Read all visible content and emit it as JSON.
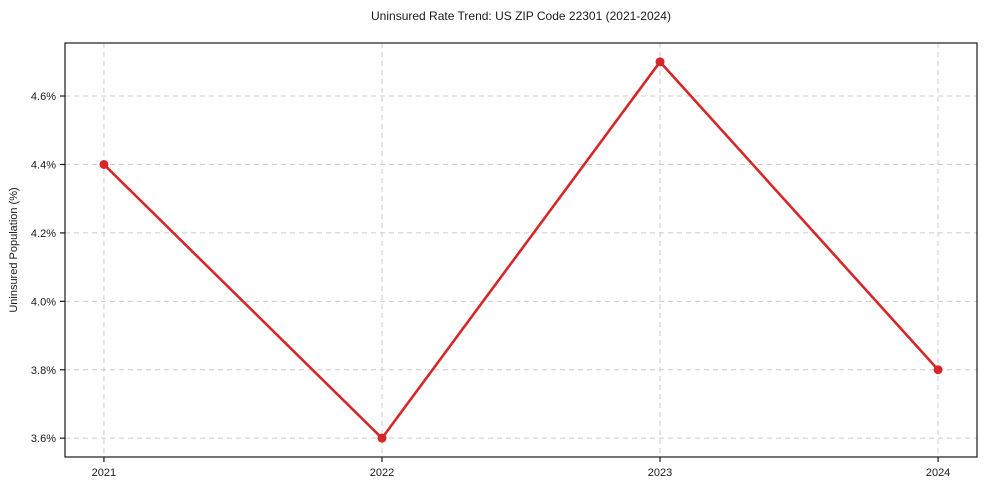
{
  "chart_data": {
    "type": "line",
    "title": "Uninsured Rate Trend: US ZIP Code 22301 (2021-2024)",
    "xlabel": "",
    "ylabel": "Uninsured Population (%)",
    "x": [
      2021,
      2022,
      2023,
      2024
    ],
    "x_tick_labels": [
      "2021",
      "2022",
      "2023",
      "2024"
    ],
    "series": [
      {
        "values": [
          4.4,
          3.6,
          4.7,
          3.8
        ]
      }
    ],
    "y_ticks": [
      3.6,
      3.8,
      4.0,
      4.2,
      4.4,
      4.6
    ],
    "y_tick_labels": [
      "3.6%",
      "3.8%",
      "4.0%",
      "4.2%",
      "4.4%",
      "4.6%"
    ],
    "xlim": [
      2020.86,
      2024.14
    ],
    "ylim": [
      3.545,
      4.755
    ],
    "grid": true,
    "grid_style": "dashed",
    "legend_position": "none",
    "marker": "circle",
    "colors": {
      "line": "#d62728",
      "marker": "#d62728",
      "grid": "#cccccc",
      "axis": "#1a1a1a",
      "text": "#1a1a1a",
      "background": "#ffffff"
    }
  }
}
